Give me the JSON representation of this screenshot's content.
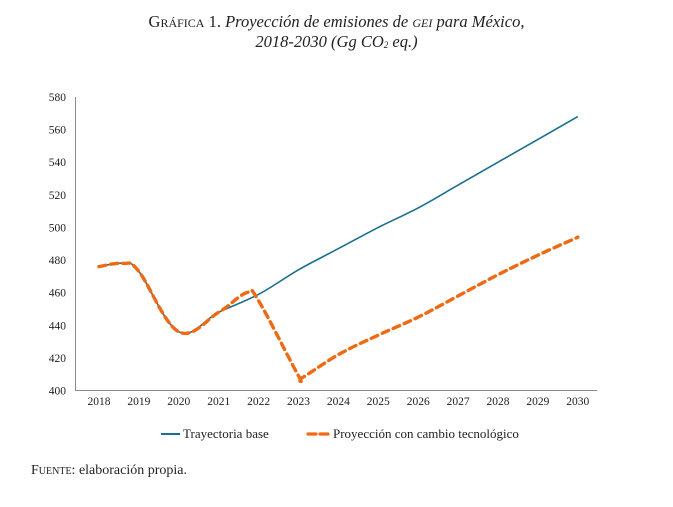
{
  "title": {
    "prefix": "Gráfica 1.",
    "part1": "Proyección de emisiones de",
    "gei": "GEI",
    "part2": "para México,",
    "line2_a": "2018-2030 (Gg CO",
    "line2_sub": "2",
    "line2_b": " eq.)"
  },
  "source": {
    "label": "Fuente:",
    "text": "elaboración propia."
  },
  "chart_data": {
    "type": "line",
    "title": "Gráfica 1. Proyección de emisiones de GEI para México, 2018-2030 (Gg CO2 eq.)",
    "xlabel": "",
    "ylabel": "",
    "x": [
      2018,
      2019,
      2020,
      2021,
      2022,
      2023,
      2024,
      2025,
      2026,
      2027,
      2028,
      2029,
      2030
    ],
    "xlim": [
      2017.4,
      2030.4
    ],
    "ylim": [
      400,
      580
    ],
    "yticks": [
      400,
      420,
      440,
      460,
      480,
      500,
      520,
      540,
      560,
      580
    ],
    "xtick_labels": [
      "2018",
      "2019",
      "2020",
      "2021",
      "2022",
      "2023",
      "2024",
      "2025",
      "2026",
      "2027",
      "2028",
      "2029",
      "2030"
    ],
    "grid": false,
    "legend_position": "bottom",
    "series": [
      {
        "name": "Trayectoria base",
        "color": "#1a6e8e",
        "style": "solid",
        "values": [
          476,
          473,
          436,
          448,
          459,
          474,
          487,
          500,
          512,
          526,
          540,
          554,
          568
        ]
      },
      {
        "name": "Proyección con cambio tecnológico",
        "color": "#f06a14",
        "style": "dashed",
        "values": [
          476,
          473,
          436,
          448,
          455,
          409,
          422,
          434,
          445,
          458,
          471,
          483,
          494
        ],
        "extra_points": [
          {
            "x": 2018.6,
            "y": 478
          },
          {
            "x": 2021.7,
            "y": 460
          },
          {
            "x": 2023.1,
            "y": 408
          }
        ]
      }
    ]
  }
}
